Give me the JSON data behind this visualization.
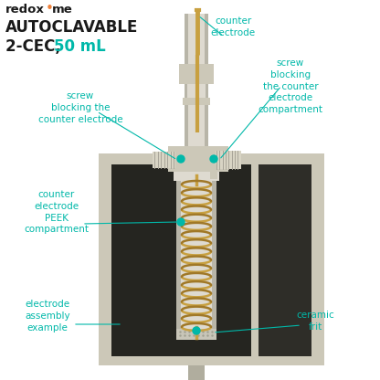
{
  "bg_color": "#ffffff",
  "teal_color": "#00b8a9",
  "orange_color": "#f0813a",
  "body_color": "#ccc8b8",
  "body_dark": "#b0ad9e",
  "body_light": "#dedad0",
  "inner_color": "#252520",
  "inner_right": "#2e2d28",
  "gold_color": "#c8a040",
  "gold_dark": "#a07828",
  "peek_color": "#dedad0",
  "peek_shade": "#b8b5a8",
  "screw_color": "#d8d4c4",
  "frit_color": "#c8c5b8",
  "title_line1": "AUTOCLAVABLE",
  "title_line2": "2-CEC, ",
  "title_highlight": "50 mL",
  "labels": {
    "counter_electrode": "counter\nelectrode",
    "screw_blocking_right": "screw\nblocking\nthe counter\nelectrode\ncompartment",
    "screw_blocking_left": "screw\nblocking the\ncounter electrode",
    "counter_peek": "counter\nelectrode\nPEEK\ncompartment",
    "electrode_assembly": "electrode\nassembly\nexample",
    "ceramic_frit": "ceramic\nfrit"
  }
}
